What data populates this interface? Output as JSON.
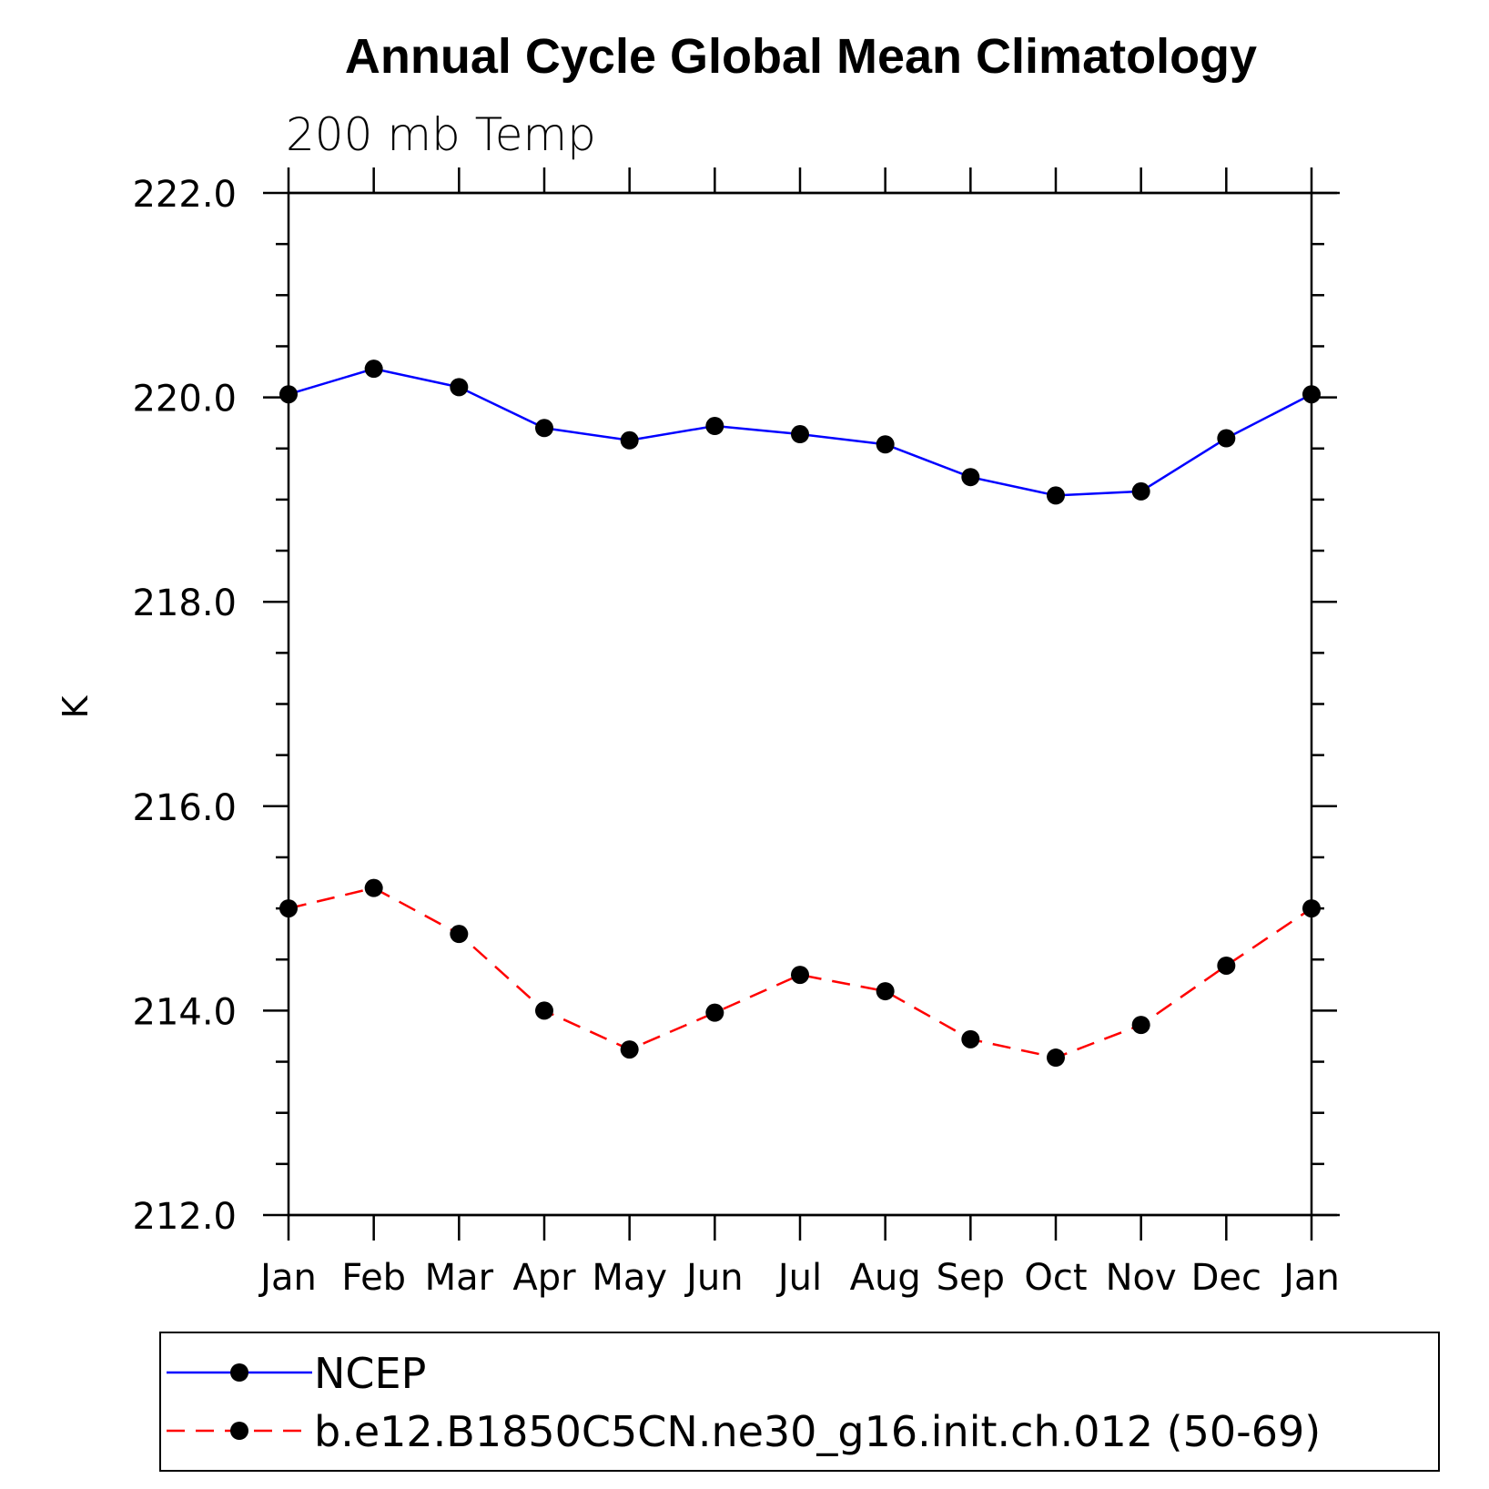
{
  "chart_data": {
    "type": "line",
    "title": "Annual Cycle Global Mean Climatology",
    "subtitle": "200 mb Temp",
    "xlabel": "",
    "ylabel": "K",
    "categories": [
      "Jan",
      "Feb",
      "Mar",
      "Apr",
      "May",
      "Jun",
      "Jul",
      "Aug",
      "Sep",
      "Oct",
      "Nov",
      "Dec",
      "Jan"
    ],
    "ylim": [
      212.0,
      222.0
    ],
    "yticks": [
      "212.0",
      "214.0",
      "216.0",
      "218.0",
      "220.0",
      "222.0"
    ],
    "grid": false,
    "legend_position": "bottom",
    "series": [
      {
        "name": "NCEP",
        "color": "#0000ff",
        "line_style": "solid",
        "marker": "filled-circle",
        "values": [
          220.03,
          220.28,
          220.1,
          219.7,
          219.58,
          219.72,
          219.64,
          219.54,
          219.22,
          219.04,
          219.08,
          219.6,
          220.03
        ]
      },
      {
        "name": "b.e12.B1850C5CN.ne30_g16.init.ch.012 (50-69)",
        "color": "#ff0000",
        "line_style": "dashed",
        "marker": "filled-circle",
        "values": [
          215.0,
          215.2,
          214.75,
          214.0,
          213.62,
          213.98,
          214.35,
          214.19,
          213.72,
          213.54,
          213.86,
          214.44,
          215.0
        ]
      }
    ]
  }
}
